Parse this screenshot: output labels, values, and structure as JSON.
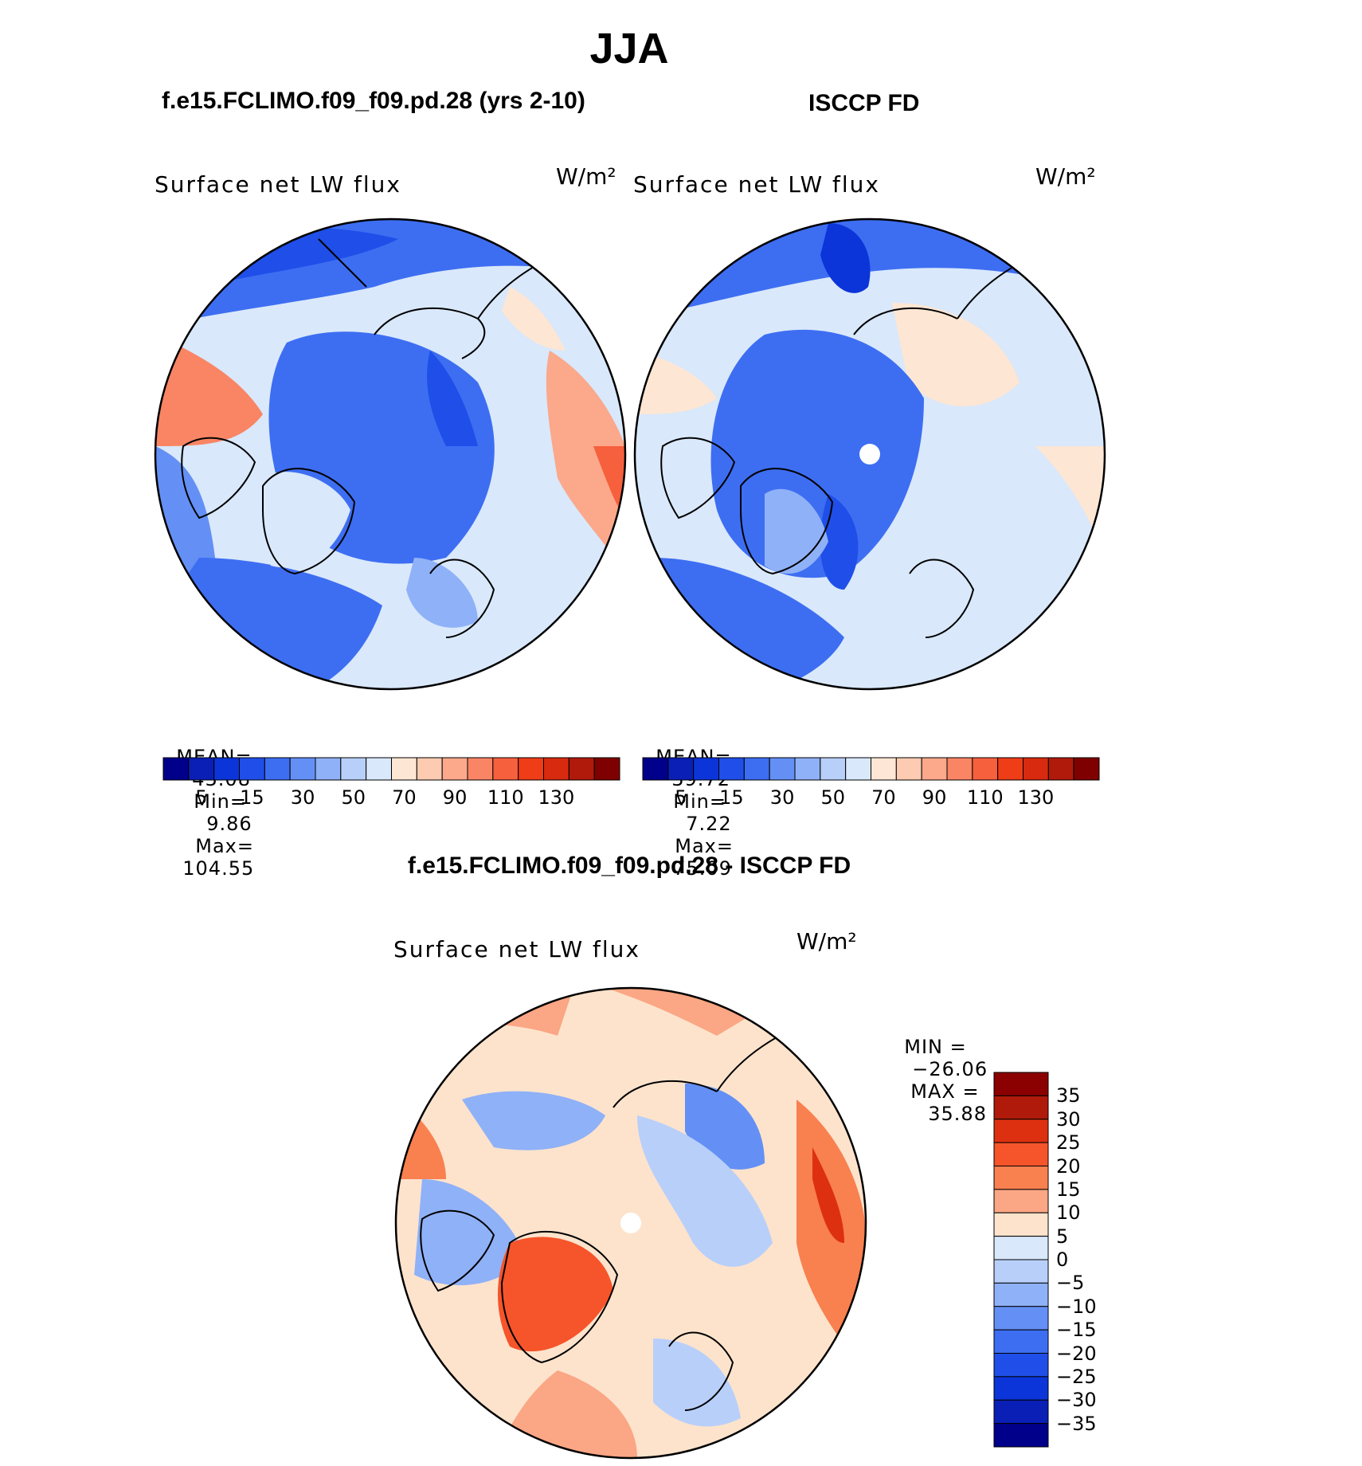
{
  "figure": {
    "title": "JJA",
    "diff_title": "f.e15.FCLIMO.f09_f09.pd.28 - ISCCP FD"
  },
  "panels": [
    {
      "id": "model",
      "case_title": "f.e15.FCLIMO.f09_f09.pd.28 (yrs 2-10)",
      "variable": "Surface net LW flux",
      "units": "W/m²",
      "stats": {
        "mean_label": "MEAN=",
        "mean": "43.08",
        "min_label": "Min=",
        "min": "9.86",
        "max_label": "Max=",
        "max": "104.55"
      }
    },
    {
      "id": "obs",
      "case_title": "ISCCP FD",
      "variable": "Surface net LW flux",
      "units": "W/m²",
      "stats": {
        "mean_label": "MEAN=",
        "mean": "39.72",
        "min_label": "Min=",
        "min": "7.22",
        "max_label": "Max=",
        "max": "75.09"
      }
    },
    {
      "id": "diff",
      "variable": "Surface net LW flux",
      "units": "W/m²",
      "stats": {
        "min_label": "MIN =",
        "min": "−26.06",
        "max_label": "MAX =",
        "max": "35.88"
      }
    }
  ],
  "colorbars": {
    "abs": {
      "tick_labels": [
        "5",
        "15",
        "30",
        "50",
        "70",
        "90",
        "110",
        "130"
      ],
      "colors": [
        "#00008b",
        "#0a1fb5",
        "#0b35d9",
        "#1f4fe8",
        "#3d6ef2",
        "#6490f5",
        "#8fb1f7",
        "#b8cffa",
        "#d9e8fb",
        "#fde6d3",
        "#fccbb1",
        "#fba88b",
        "#f98564",
        "#f6603d",
        "#ee3d17",
        "#d82a0e",
        "#b01a0a",
        "#7f0000"
      ]
    },
    "diff": {
      "tick_labels": [
        "35",
        "30",
        "25",
        "20",
        "15",
        "10",
        "5",
        "0",
        "−5",
        "−10",
        "−15",
        "−20",
        "−25",
        "−30",
        "−35"
      ],
      "colors": [
        "#8b0000",
        "#b01a0a",
        "#dd3010",
        "#f6542a",
        "#f9804f",
        "#fba684",
        "#fde3cc",
        "#d9e8fb",
        "#b8cffa",
        "#8fb1f7",
        "#6490f5",
        "#3d6ef2",
        "#1f4fe8",
        "#0b35d9",
        "#0a1fb5",
        "#00008b"
      ]
    }
  }
}
